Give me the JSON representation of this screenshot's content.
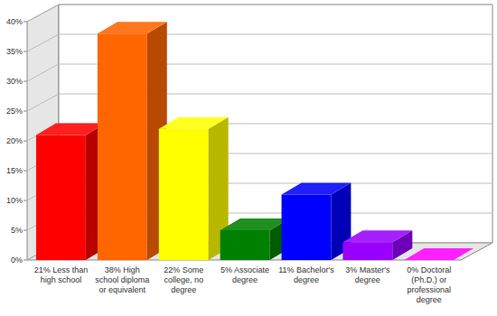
{
  "chart_data": {
    "type": "bar",
    "categories": [
      "21% Less than high school",
      "38% High school diploma or equivalent",
      "22% Some college, no degree",
      "5% Associate degree",
      "11% Bachelor's degree",
      "3% Master's degree",
      "0% Doctoral (Ph.D.) or professional degree"
    ],
    "values": [
      21,
      38,
      22,
      5,
      11,
      3,
      0
    ],
    "colors": [
      "#ff0000",
      "#ff6600",
      "#ffff00",
      "#008000",
      "#0000ff",
      "#9900ff",
      "#ff00ff"
    ],
    "ylim": [
      0,
      40
    ],
    "yticks": [
      {
        "value": 0,
        "label": "0%"
      },
      {
        "value": 5,
        "label": "5%"
      },
      {
        "value": 10,
        "label": "10%"
      },
      {
        "value": 15,
        "label": "15%"
      },
      {
        "value": 20,
        "label": "20%"
      },
      {
        "value": 25,
        "label": "25%"
      },
      {
        "value": 30,
        "label": "30%"
      },
      {
        "value": 35,
        "label": "35%"
      },
      {
        "value": 40,
        "label": "40%"
      }
    ],
    "grid": true
  }
}
